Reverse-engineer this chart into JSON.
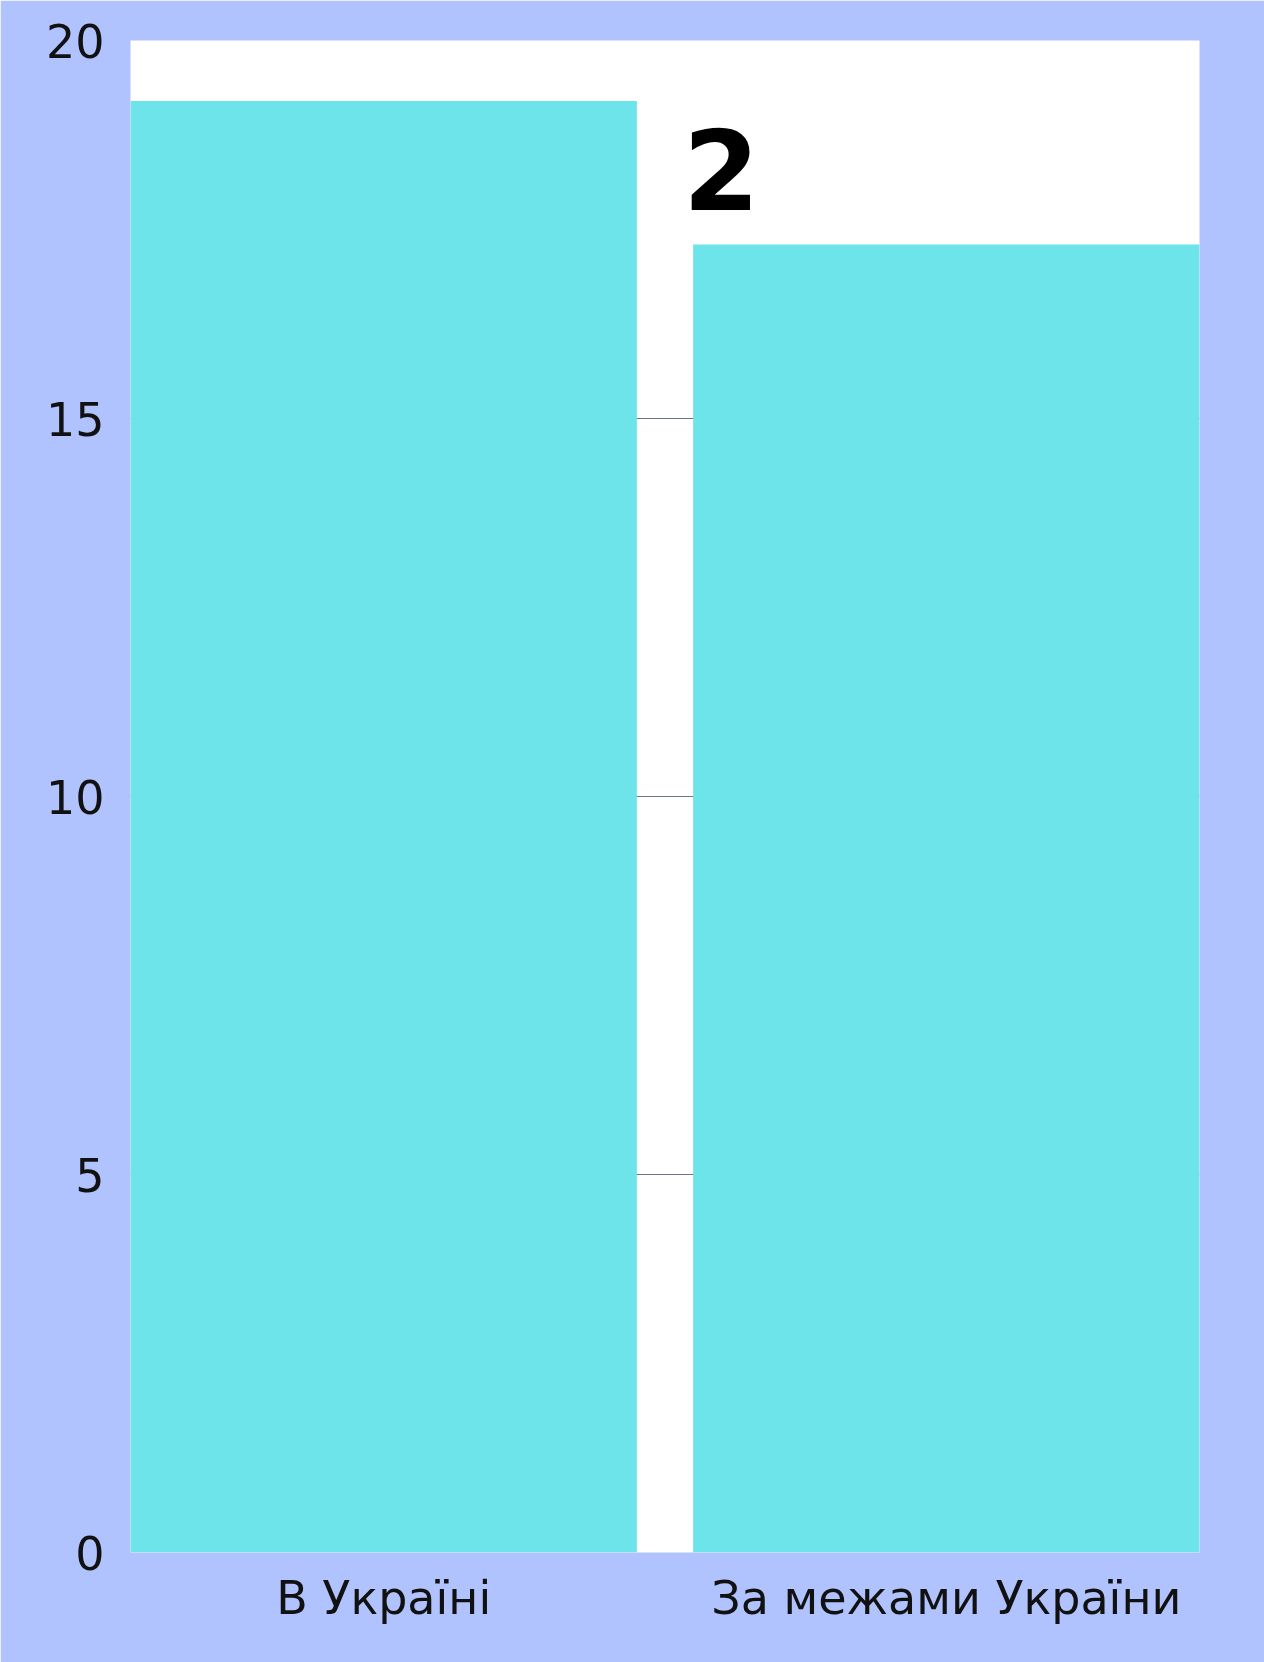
{
  "chart_data": {
    "type": "bar",
    "categories": [
      "В Україні",
      "За межами України"
    ],
    "values": [
      19.2,
      17.3
    ],
    "color": "#6de4ea",
    "ylim": [
      0,
      20
    ],
    "yticks": [
      0,
      5,
      10,
      15,
      20
    ],
    "grid": "y",
    "annotations": [
      "2"
    ]
  }
}
